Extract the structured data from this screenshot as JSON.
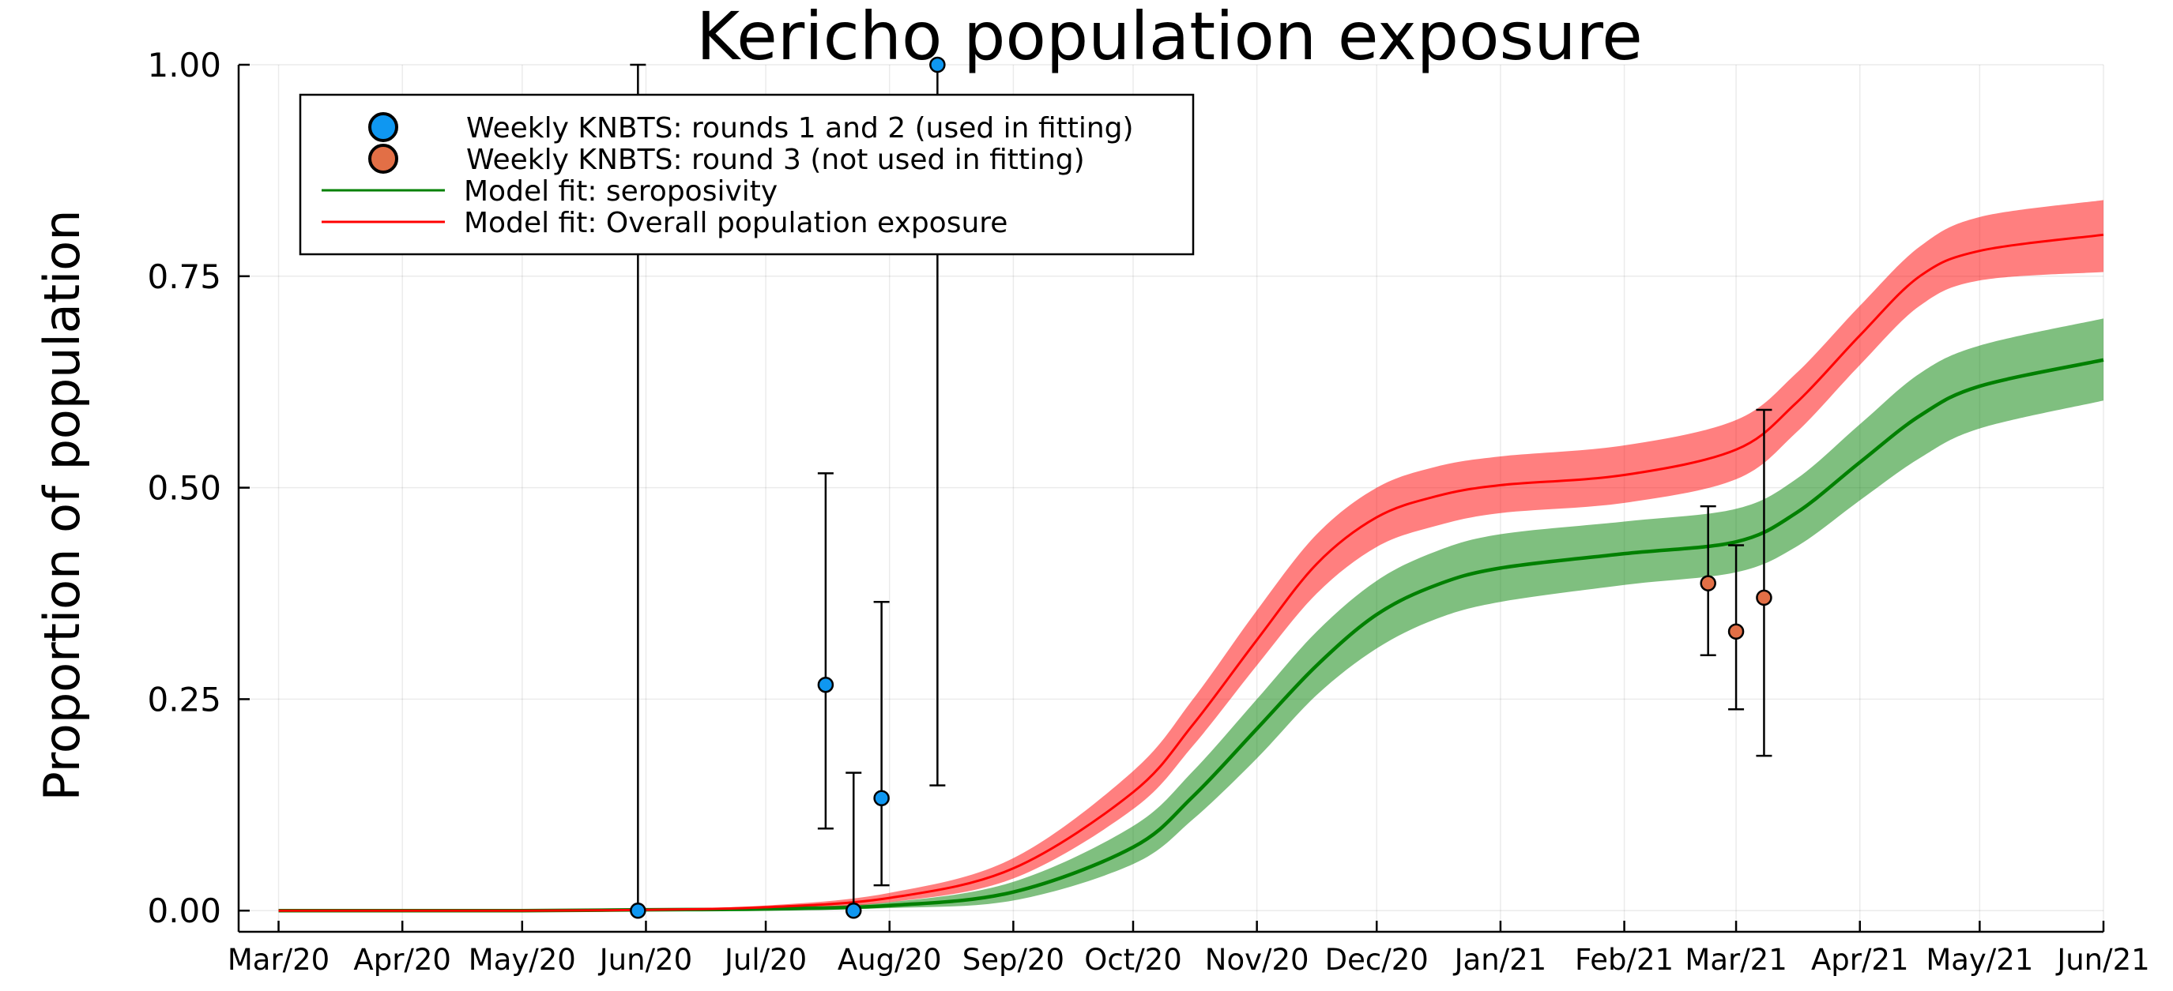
{
  "chart_data": {
    "type": "line",
    "title": "Kericho population exposure",
    "xlabel": "",
    "ylabel": "Proportion of population",
    "x_axis": {
      "type": "date",
      "range": [
        "2020-02-20",
        "2021-06-01"
      ],
      "ticks": [
        {
          "date": "2020-03-01",
          "label": "Mar/20"
        },
        {
          "date": "2020-04-01",
          "label": "Apr/20"
        },
        {
          "date": "2020-05-01",
          "label": "May/20"
        },
        {
          "date": "2020-06-01",
          "label": "Jun/20"
        },
        {
          "date": "2020-07-01",
          "label": "Jul/20"
        },
        {
          "date": "2020-08-01",
          "label": "Aug/20"
        },
        {
          "date": "2020-09-01",
          "label": "Sep/20"
        },
        {
          "date": "2020-10-01",
          "label": "Oct/20"
        },
        {
          "date": "2020-11-01",
          "label": "Nov/20"
        },
        {
          "date": "2020-12-01",
          "label": "Dec/20"
        },
        {
          "date": "2021-01-01",
          "label": "Jan/21"
        },
        {
          "date": "2021-02-01",
          "label": "Feb/21"
        },
        {
          "date": "2021-03-01",
          "label": "Mar/21"
        },
        {
          "date": "2021-04-01",
          "label": "Apr/21"
        },
        {
          "date": "2021-05-01",
          "label": "May/21"
        },
        {
          "date": "2021-06-01",
          "label": "Jun/21"
        }
      ]
    },
    "y_axis": {
      "range": [
        -0.025,
        1.0
      ],
      "ticks": [
        {
          "value": 0.0,
          "label": "0.00"
        },
        {
          "value": 0.25,
          "label": "0.25"
        },
        {
          "value": 0.5,
          "label": "0.50"
        },
        {
          "value": 0.75,
          "label": "0.75"
        },
        {
          "value": 1.0,
          "label": "1.00"
        }
      ]
    },
    "grid": true,
    "legend_position": "top-left",
    "series": [
      {
        "name": "Weekly KNBTS: rounds 1 and 2 (used in fitting)",
        "kind": "scatter_errorbar",
        "color": "#0f97f1",
        "points": [
          {
            "x": "2020-05-30",
            "y": 0.0,
            "lo": 0.0,
            "hi": 1.0
          },
          {
            "x": "2020-07-16",
            "y": 0.267,
            "lo": 0.097,
            "hi": 0.517
          },
          {
            "x": "2020-07-23",
            "y": 0.0,
            "lo": 0.0,
            "hi": 0.163
          },
          {
            "x": "2020-07-30",
            "y": 0.133,
            "lo": 0.03,
            "hi": 0.365
          },
          {
            "x": "2020-08-13",
            "y": 1.0,
            "lo": 0.148,
            "hi": 1.0
          }
        ]
      },
      {
        "name": "Weekly KNBTS: round 3 (not used in fitting)",
        "kind": "scatter_errorbar",
        "color": "#e26f46",
        "points": [
          {
            "x": "2021-02-22",
            "y": 0.387,
            "lo": 0.302,
            "hi": 0.478
          },
          {
            "x": "2021-03-01",
            "y": 0.33,
            "lo": 0.238,
            "hi": 0.432
          },
          {
            "x": "2021-03-08",
            "y": 0.37,
            "lo": 0.183,
            "hi": 0.592
          }
        ]
      },
      {
        "name": "Model fit: seroposivity",
        "kind": "line_band",
        "color": "#008000",
        "band_color": "#008000",
        "points": [
          {
            "x": "2020-03-01",
            "y": 0.0,
            "lo": 0.0,
            "hi": 0.0
          },
          {
            "x": "2020-05-01",
            "y": 0.0,
            "lo": 0.0,
            "hi": 0.0
          },
          {
            "x": "2020-06-01",
            "y": 0.001,
            "lo": 0.0,
            "hi": 0.002
          },
          {
            "x": "2020-07-01",
            "y": 0.002,
            "lo": 0.001,
            "hi": 0.004
          },
          {
            "x": "2020-08-01",
            "y": 0.006,
            "lo": 0.003,
            "hi": 0.01
          },
          {
            "x": "2020-09-01",
            "y": 0.022,
            "lo": 0.012,
            "hi": 0.034
          },
          {
            "x": "2020-10-01",
            "y": 0.075,
            "lo": 0.055,
            "hi": 0.1
          },
          {
            "x": "2020-10-16",
            "y": 0.135,
            "lo": 0.108,
            "hi": 0.165
          },
          {
            "x": "2020-11-01",
            "y": 0.215,
            "lo": 0.18,
            "hi": 0.25
          },
          {
            "x": "2020-11-16",
            "y": 0.29,
            "lo": 0.255,
            "hi": 0.33
          },
          {
            "x": "2020-12-01",
            "y": 0.35,
            "lo": 0.31,
            "hi": 0.39
          },
          {
            "x": "2020-12-16",
            "y": 0.385,
            "lo": 0.345,
            "hi": 0.425
          },
          {
            "x": "2021-01-01",
            "y": 0.405,
            "lo": 0.365,
            "hi": 0.445
          },
          {
            "x": "2021-02-01",
            "y": 0.422,
            "lo": 0.385,
            "hi": 0.46
          },
          {
            "x": "2021-03-01",
            "y": 0.436,
            "lo": 0.4,
            "hi": 0.475
          },
          {
            "x": "2021-03-16",
            "y": 0.47,
            "lo": 0.43,
            "hi": 0.51
          },
          {
            "x": "2021-04-01",
            "y": 0.53,
            "lo": 0.485,
            "hi": 0.575
          },
          {
            "x": "2021-04-16",
            "y": 0.585,
            "lo": 0.535,
            "hi": 0.635
          },
          {
            "x": "2021-05-01",
            "y": 0.62,
            "lo": 0.57,
            "hi": 0.668
          },
          {
            "x": "2021-06-01",
            "y": 0.651,
            "lo": 0.603,
            "hi": 0.7
          }
        ]
      },
      {
        "name": "Model fit: Overall population exposure",
        "kind": "line_band",
        "color": "#ff0000",
        "band_color": "#ff0000",
        "points": [
          {
            "x": "2020-03-01",
            "y": 0.0,
            "lo": 0.0,
            "hi": 0.0
          },
          {
            "x": "2020-05-01",
            "y": 0.0,
            "lo": 0.0,
            "hi": 0.001
          },
          {
            "x": "2020-06-01",
            "y": 0.001,
            "lo": 0.0,
            "hi": 0.002
          },
          {
            "x": "2020-07-01",
            "y": 0.004,
            "lo": 0.002,
            "hi": 0.006
          },
          {
            "x": "2020-08-01",
            "y": 0.015,
            "lo": 0.01,
            "hi": 0.021
          },
          {
            "x": "2020-09-01",
            "y": 0.05,
            "lo": 0.038,
            "hi": 0.062
          },
          {
            "x": "2020-10-01",
            "y": 0.14,
            "lo": 0.12,
            "hi": 0.165
          },
          {
            "x": "2020-10-16",
            "y": 0.22,
            "lo": 0.195,
            "hi": 0.25
          },
          {
            "x": "2020-11-01",
            "y": 0.32,
            "lo": 0.29,
            "hi": 0.355
          },
          {
            "x": "2020-11-16",
            "y": 0.41,
            "lo": 0.375,
            "hi": 0.445
          },
          {
            "x": "2020-12-01",
            "y": 0.465,
            "lo": 0.43,
            "hi": 0.5
          },
          {
            "x": "2020-12-16",
            "y": 0.49,
            "lo": 0.455,
            "hi": 0.525
          },
          {
            "x": "2021-01-01",
            "y": 0.503,
            "lo": 0.47,
            "hi": 0.537
          },
          {
            "x": "2021-02-01",
            "y": 0.515,
            "lo": 0.482,
            "hi": 0.55
          },
          {
            "x": "2021-03-01",
            "y": 0.545,
            "lo": 0.51,
            "hi": 0.58
          },
          {
            "x": "2021-03-16",
            "y": 0.6,
            "lo": 0.565,
            "hi": 0.635
          },
          {
            "x": "2021-04-01",
            "y": 0.68,
            "lo": 0.645,
            "hi": 0.715
          },
          {
            "x": "2021-04-16",
            "y": 0.75,
            "lo": 0.715,
            "hi": 0.785
          },
          {
            "x": "2021-05-01",
            "y": 0.78,
            "lo": 0.745,
            "hi": 0.82
          },
          {
            "x": "2021-06-01",
            "y": 0.799,
            "lo": 0.755,
            "hi": 0.84
          }
        ]
      }
    ]
  }
}
